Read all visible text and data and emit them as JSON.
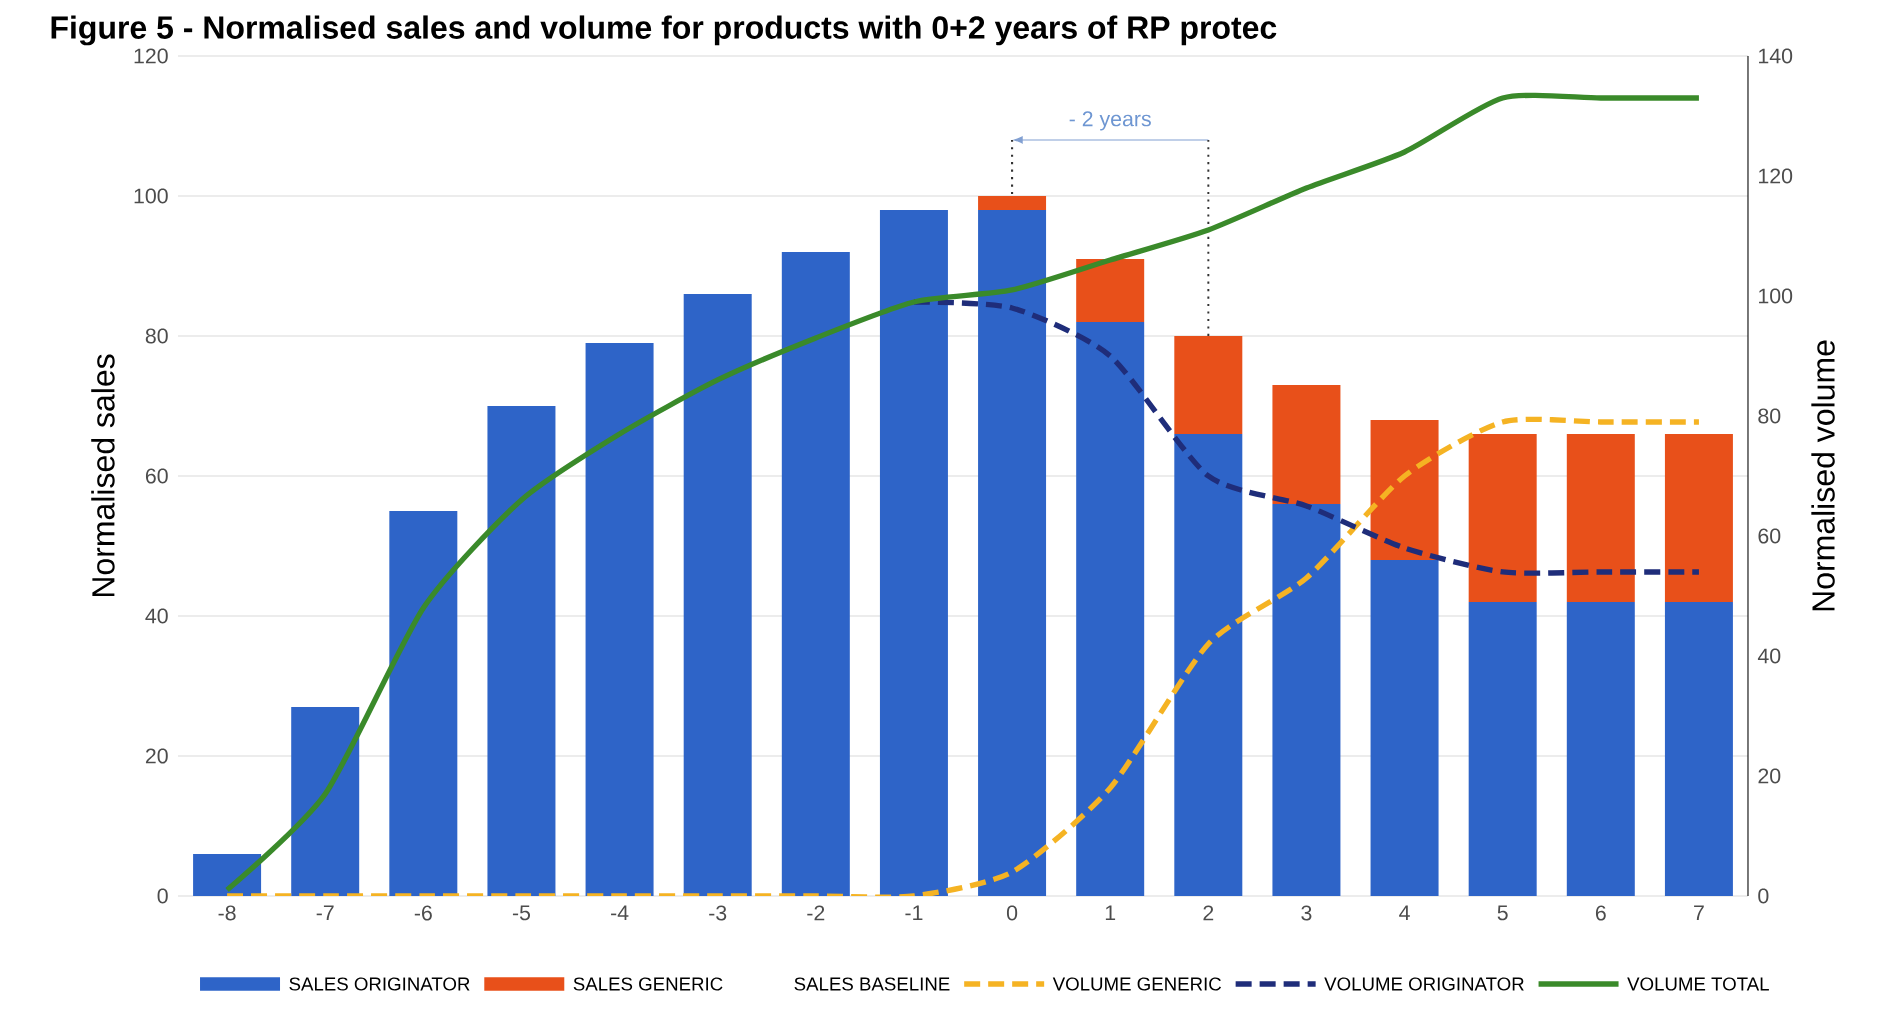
{
  "chart_data": {
    "type": "bar",
    "stacked": true,
    "title": "Figure 5 - Normalised sales and volume for products with 0+2 years of RP protec",
    "ylabel": "Normalised sales",
    "y2label": "Normalised volume",
    "x": [
      -8,
      -7,
      -6,
      -5,
      -4,
      -3,
      -2,
      -1,
      0,
      1,
      2,
      3,
      4,
      5,
      6,
      7
    ],
    "xlim": [
      -8.5,
      7.5
    ],
    "xticks": [
      -8,
      -7,
      -6,
      -5,
      -4,
      -3,
      -2,
      -1,
      0,
      1,
      2,
      3,
      4,
      5,
      6,
      7
    ],
    "ylim": [
      0,
      120
    ],
    "yticks": [
      0,
      20,
      40,
      60,
      80,
      100,
      120
    ],
    "y2lim": [
      0,
      140
    ],
    "y2ticks": [
      0,
      20,
      40,
      60,
      80,
      100,
      120,
      140
    ],
    "grid": "y",
    "legend": "bottom",
    "series": [
      {
        "name": "SALES ORIGINATOR",
        "color": "#2e64c8",
        "values": [
          6,
          27,
          55,
          70,
          79,
          86,
          92,
          98,
          98,
          82,
          66,
          56,
          48,
          42,
          42,
          42
        ]
      },
      {
        "name": "SALES GENERIC",
        "color": "#e8501a",
        "values": [
          0,
          0,
          0,
          0,
          0,
          0,
          0,
          0,
          2,
          9,
          14,
          17,
          20,
          24,
          24,
          24
        ]
      },
      {
        "name": "VOLUME GENERIC",
        "type": "line",
        "axis": "y2",
        "line_style": "dashed",
        "color": "#f5b323",
        "values": [
          0,
          0,
          0,
          0,
          0,
          0,
          0,
          0,
          4,
          18,
          42,
          53,
          70,
          79,
          79,
          79
        ]
      },
      {
        "name": "VOLUME ORIGINATOR",
        "type": "line",
        "axis": "y2",
        "line_style": "dashed",
        "color": "#1f2d7a",
        "values": [
          null,
          null,
          null,
          null,
          null,
          null,
          null,
          99,
          98,
          90,
          70,
          65,
          58,
          54,
          54,
          54
        ]
      },
      {
        "name": "VOLUME TOTAL",
        "type": "line",
        "axis": "y2",
        "line_style": "solid",
        "color": "#3a8a2a",
        "values": [
          1,
          17,
          48,
          66,
          77,
          86,
          93,
          99,
          101,
          106,
          111,
          118,
          124,
          133,
          133,
          133
        ]
      }
    ],
    "ref_lines": [
      {
        "axis": "x",
        "value": 0,
        "line_style": "dotted",
        "color": "#333333"
      },
      {
        "axis": "x",
        "value": 2,
        "line_style": "dotted",
        "color": "#333333"
      }
    ],
    "annotations": [
      "- 2 years",
      "SALES BASELINE"
    ]
  }
}
